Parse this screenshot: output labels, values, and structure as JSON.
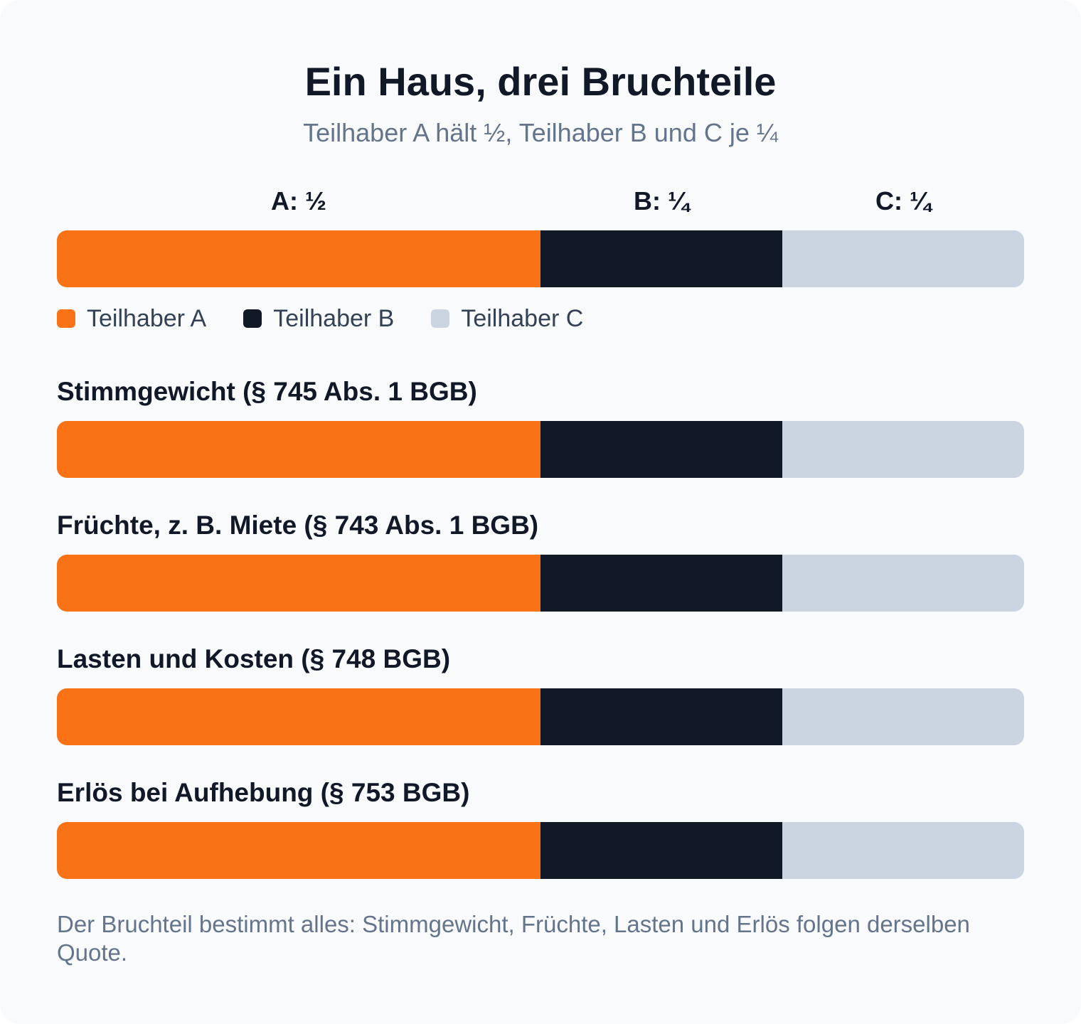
{
  "title": "Ein Haus, drei Bruchteile",
  "subtitle": "Teilhaber A hält ½, Teilhaber B und C je ¼",
  "colors": {
    "A": "#f97316",
    "B": "#111827",
    "C": "#cbd5e1"
  },
  "legend": [
    "Teilhaber A",
    "Teilhaber B",
    "Teilhaber C"
  ],
  "note": "Der Bruchteil bestimmt alles: Stimmgewicht, Früchte, Lasten und Erlös folgen derselben Quote.",
  "chart_data": {
    "type": "bar",
    "orientation": "horizontal-stacked",
    "title": "Ein Haus, drei Bruchteile",
    "subtitle": "Teilhaber A hält ½, Teilhaber B und C je ¼",
    "categories": [
      "",
      "Stimmgewicht (§ 745 Abs. 1 BGB)",
      "Früchte, z. B. Miete (§ 743 Abs. 1 BGB)",
      "Lasten und Kosten (§ 748 BGB)",
      "Erlös bei Aufhebung (§ 753 BGB)"
    ],
    "series": [
      {
        "name": "Teilhaber A",
        "share_label": "A: ½",
        "values": [
          0.5,
          0.5,
          0.5,
          0.5,
          0.5
        ]
      },
      {
        "name": "Teilhaber B",
        "share_label": "B: ¼",
        "values": [
          0.25,
          0.25,
          0.25,
          0.25,
          0.25
        ]
      },
      {
        "name": "Teilhaber C",
        "share_label": "C: ¼",
        "values": [
          0.25,
          0.25,
          0.25,
          0.25,
          0.25
        ]
      }
    ],
    "xlim": [
      0,
      1
    ],
    "grid": false,
    "legend_position": "below-first-bar"
  }
}
